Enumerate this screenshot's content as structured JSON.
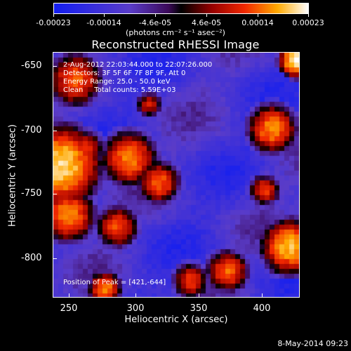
{
  "colorbar": {
    "ticks": [
      "-0.00023",
      "-0.00014",
      "-4.6e-05",
      "4.6e-05",
      "0.00014",
      "0.00023"
    ],
    "units": "(photons cm⁻² s⁻¹ asec⁻²)"
  },
  "title": "Reconstructed RHESSI Image",
  "annotations": {
    "time": "2-Aug-2012 22:03:44.000 to 22:07:26.000",
    "detectors": "Detectors: 3F 5F 6F 7F 8F 9F, Att 0",
    "energy": "Energy Range: 25.0 - 50.0 keV",
    "clean": "Clean     Total counts: 5.59E+03",
    "peak": "Position of Peak = [421,-644]"
  },
  "axes": {
    "xlabel": "Heliocentric X (arcsec)",
    "ylabel": "Heliocentric Y (arcsec)",
    "xticks": [
      "250",
      "300",
      "350",
      "400"
    ],
    "yticks": [
      "-650",
      "-700",
      "-750",
      "-800"
    ]
  },
  "timestamp": "8-May-2014 09:23",
  "colors": {
    "background": "#000000",
    "axis": "#ffffff"
  }
}
